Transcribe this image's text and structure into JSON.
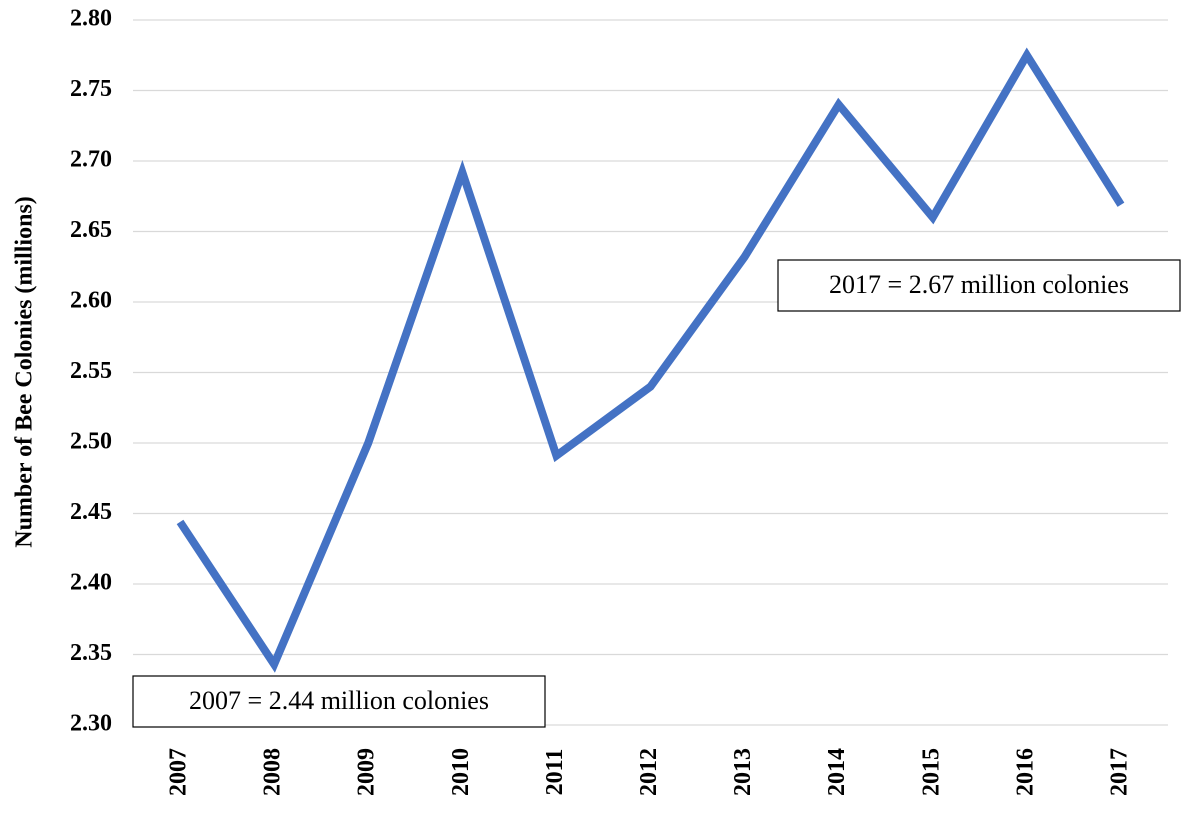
{
  "chart_data": {
    "type": "line",
    "y_label": "Number of Bee Colonies (millions)",
    "categories": [
      "2007",
      "2008",
      "2009",
      "2010",
      "2011",
      "2012",
      "2013",
      "2014",
      "2015",
      "2016",
      "2017"
    ],
    "series": [
      {
        "name": "Bee colonies",
        "color": "#4472c4",
        "values": [
          2.444,
          2.343,
          2.5,
          2.692,
          2.491,
          2.54,
          2.632,
          2.74,
          2.66,
          2.775,
          2.669
        ]
      }
    ],
    "ylim": [
      2.3,
      2.8
    ],
    "yticks": [
      {
        "value": 2.3,
        "label": "2.30"
      },
      {
        "value": 2.35,
        "label": "2.35"
      },
      {
        "value": 2.4,
        "label": "2.40"
      },
      {
        "value": 2.45,
        "label": "2.45"
      },
      {
        "value": 2.5,
        "label": "2.50"
      },
      {
        "value": 2.55,
        "label": "2.55"
      },
      {
        "value": 2.6,
        "label": "2.60"
      },
      {
        "value": 2.65,
        "label": "2.65"
      },
      {
        "value": 2.7,
        "label": "2.70"
      },
      {
        "value": 2.75,
        "label": "2.75"
      },
      {
        "value": 2.8,
        "label": "2.80"
      }
    ],
    "grid": true,
    "annotations": [
      "2007 = 2.44 million colonies",
      "2017 = 2.67 million colonies"
    ]
  }
}
